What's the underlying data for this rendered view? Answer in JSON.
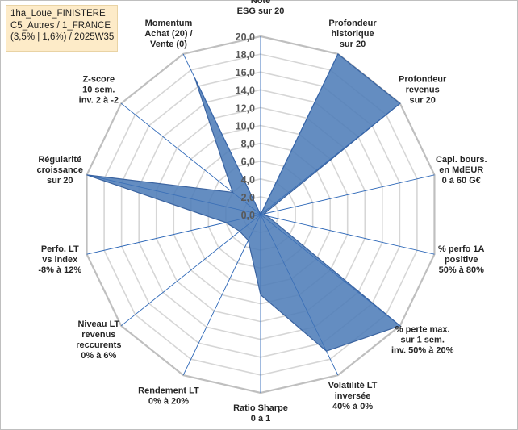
{
  "info": {
    "line1": "1ha_Loue_FINISTERE",
    "line2": "C5_Autres / 1_FRANCE",
    "line3": "(3,5% | 1,6%) / 2025W35"
  },
  "chart_data": {
    "type": "radar",
    "axes": [
      [
        "Note",
        "ESG sur 20"
      ],
      [
        "Profondeur",
        "historique",
        "sur 20"
      ],
      [
        "Profondeur",
        "revenus",
        "sur 20"
      ],
      [
        "Capi. bours.",
        "en MdEUR",
        "0 à 60 G€"
      ],
      [
        "% perfo 1A",
        "positive",
        "50% à 80%"
      ],
      [
        "% perte max.",
        "sur 1 sem.",
        "inv. 50% à 20%"
      ],
      [
        "Volatilité LT",
        "inversée",
        "40% à 0%"
      ],
      [
        "Ratio Sharpe",
        "0 à 1"
      ],
      [
        "Rendement LT",
        "0% à 20%"
      ],
      [
        "Niveau LT",
        "revenus",
        "reccurents",
        "0% à 6%"
      ],
      [
        "Perfo. LT",
        "vs index",
        "-8% à 12%"
      ],
      [
        "Régularité",
        "croissance",
        "sur 20"
      ],
      [
        "Z-score",
        "10 sem.",
        "inv. 2 à -2"
      ],
      [
        "Momentum",
        "Achat (20) /",
        "Vente (0)"
      ]
    ],
    "values": [
      0.0,
      20.0,
      20.0,
      0.4,
      0.8,
      20.0,
      17.0,
      9.0,
      3.2,
      3.0,
      4.0,
      20.0,
      4.0,
      17.0
    ],
    "rlim": [
      0,
      20
    ],
    "ticks": [
      "0,0",
      "2,0",
      "4,0",
      "6,0",
      "8,0",
      "10,0",
      "12,0",
      "14,0",
      "16,0",
      "18,0",
      "20,0"
    ],
    "colors": {
      "fill": "#4f7db8",
      "stroke": "#3a63a0",
      "spoke": "#2e68b8",
      "ring": "#d6d6d6",
      "outer_ring": "#bfbfbf"
    }
  }
}
